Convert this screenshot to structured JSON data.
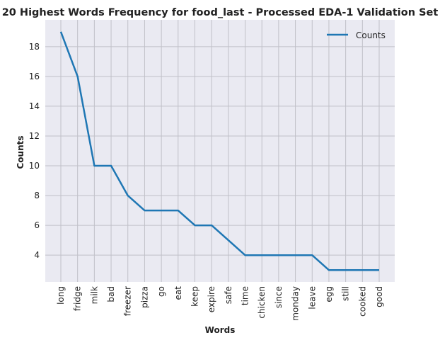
{
  "chart_data": {
    "type": "line",
    "title": "20 Highest Words Frequency for food_last - Processed EDA-1 Validation Set",
    "xlabel": "Words",
    "ylabel": "Counts",
    "categories": [
      "long",
      "fridge",
      "milk",
      "bad",
      "freezer",
      "pizza",
      "go",
      "eat",
      "keep",
      "expire",
      "safe",
      "time",
      "chicken",
      "since",
      "monday",
      "leave",
      "egg",
      "still",
      "cooked",
      "good"
    ],
    "series": [
      {
        "name": "Counts",
        "values": [
          19,
          16,
          10,
          10,
          8,
          7,
          7,
          7,
          6,
          6,
          5,
          4,
          4,
          4,
          4,
          4,
          3,
          3,
          3,
          3
        ]
      }
    ],
    "ylim": [
      2.2,
      19.8
    ],
    "yticks": [
      4,
      6,
      8,
      10,
      12,
      14,
      16,
      18
    ],
    "grid": true,
    "legend": "top-right",
    "colors": {
      "line": "#1f77b4",
      "background": "#eaeaf2",
      "grid": "#c0c0c8"
    }
  }
}
